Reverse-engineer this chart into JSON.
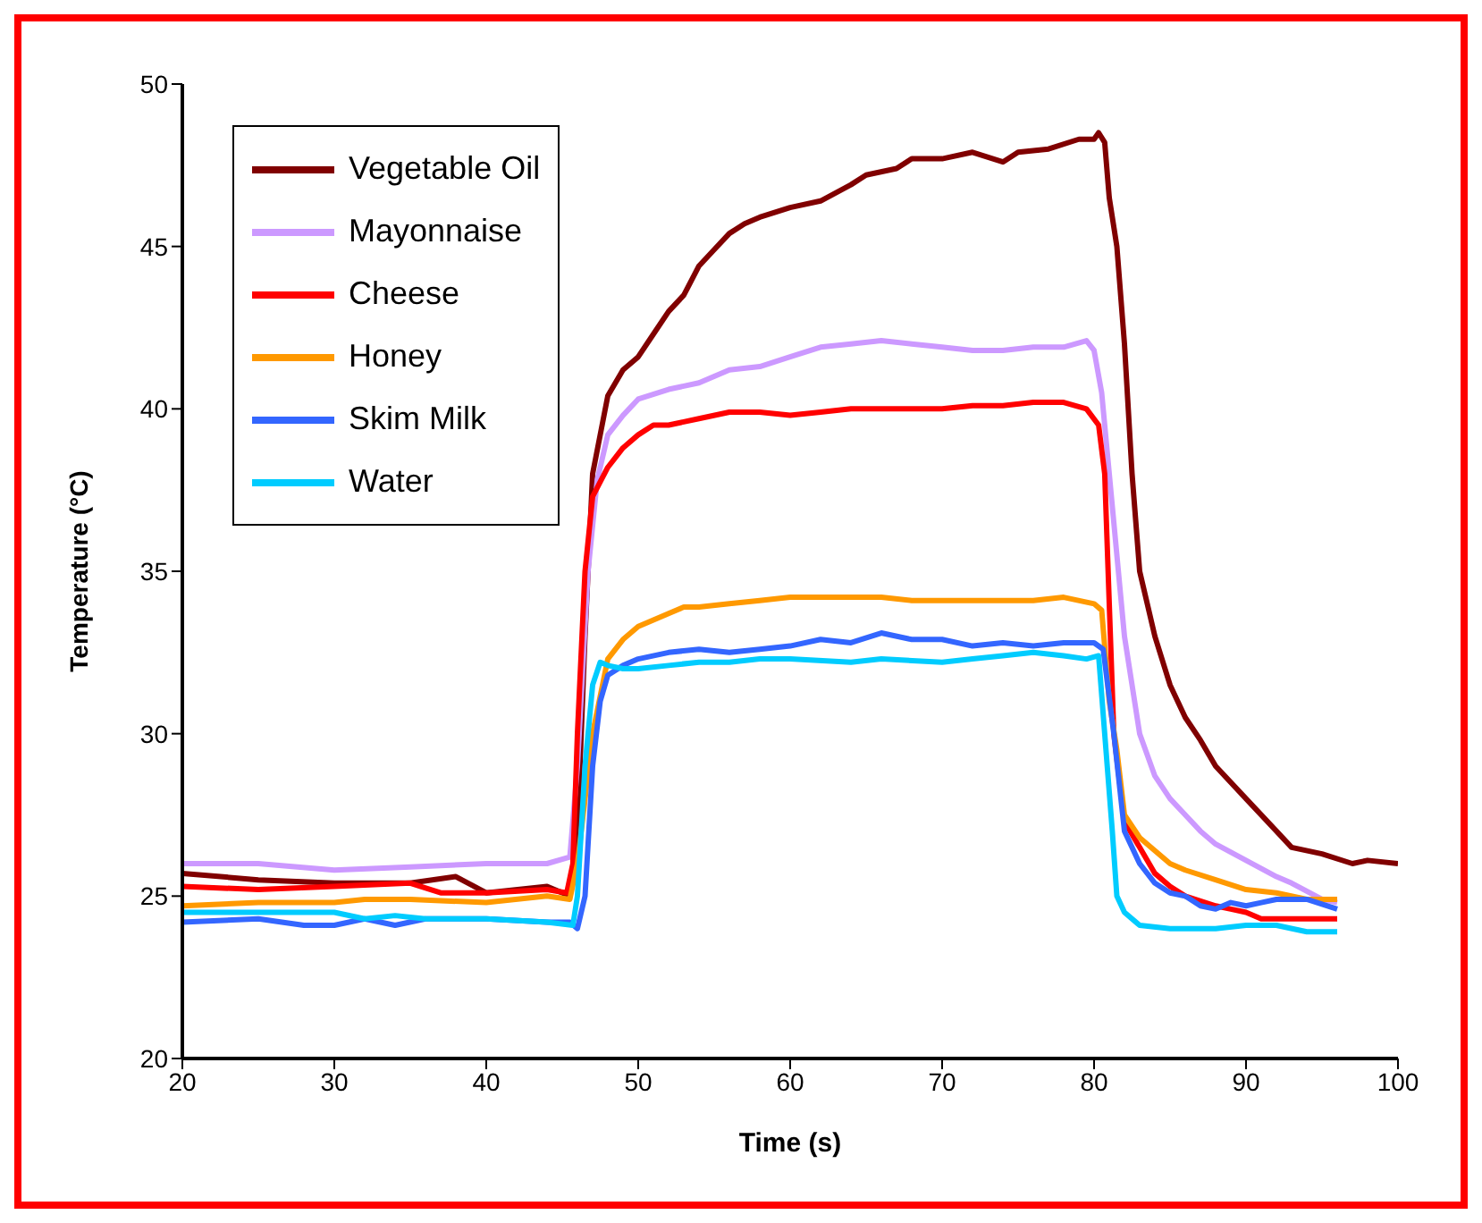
{
  "chart_data": {
    "type": "line",
    "xlabel": "Time (s)",
    "ylabel": "Temperature (°C)",
    "xlim": [
      20,
      100
    ],
    "xticks": [
      20,
      30,
      40,
      50,
      60,
      70,
      80,
      90,
      100
    ],
    "ylim": [
      20,
      50
    ],
    "yticks": [
      20,
      25,
      30,
      35,
      40,
      45,
      50
    ],
    "grid": false,
    "legend": "top left",
    "marker": "none",
    "line_style": "solid",
    "series": [
      {
        "name": "Vegetable Oil",
        "color": "#800000",
        "x": [
          20,
          25,
          30,
          35,
          38,
          40,
          44,
          45.5,
          46,
          46.5,
          47,
          48,
          49,
          50,
          51,
          52,
          53,
          54,
          55,
          56,
          57,
          58,
          60,
          62,
          64,
          65,
          67,
          68,
          70,
          72,
          74,
          75,
          77,
          79,
          80,
          80.3,
          80.7,
          81,
          81.5,
          82,
          82.5,
          83,
          84,
          85,
          86,
          87,
          88,
          90,
          92,
          93,
          95,
          97,
          98,
          100
        ],
        "values": [
          25.7,
          25.5,
          25.4,
          25.4,
          25.6,
          25.1,
          25.3,
          25.0,
          27,
          33,
          38,
          40.4,
          41.2,
          41.6,
          42.3,
          43.0,
          43.5,
          44.4,
          44.9,
          45.4,
          45.7,
          45.9,
          46.2,
          46.4,
          46.9,
          47.2,
          47.4,
          47.7,
          47.7,
          47.9,
          47.6,
          47.9,
          48.0,
          48.3,
          48.3,
          48.5,
          48.2,
          46.5,
          45,
          42,
          38,
          35,
          33,
          31.5,
          30.5,
          29.8,
          29.0,
          28.0,
          27.0,
          26.5,
          26.3,
          26.0,
          26.1,
          26.0
        ]
      },
      {
        "name": "Mayonnaise",
        "color": "#cc99ff",
        "x": [
          20,
          25,
          30,
          35,
          40,
          44,
          45.5,
          46,
          46.7,
          47.3,
          48,
          49,
          50,
          52,
          53,
          54,
          55,
          56,
          58,
          60,
          62,
          64,
          66,
          68,
          70,
          72,
          74,
          76,
          78,
          79.5,
          80,
          80.5,
          81,
          82,
          83,
          84,
          85,
          86,
          87,
          88,
          90,
          92,
          93,
          95,
          96
        ],
        "values": [
          26.0,
          26.0,
          25.8,
          25.9,
          26.0,
          26.0,
          26.2,
          29,
          35,
          37.8,
          39.2,
          39.8,
          40.3,
          40.6,
          40.7,
          40.8,
          41.0,
          41.2,
          41.3,
          41.6,
          41.9,
          42.0,
          42.1,
          42.0,
          41.9,
          41.8,
          41.8,
          41.9,
          41.9,
          42.1,
          41.8,
          40.5,
          38,
          33,
          30,
          28.7,
          28.0,
          27.5,
          27.0,
          26.6,
          26.1,
          25.6,
          25.4,
          24.9,
          24.8
        ]
      },
      {
        "name": "Cheese",
        "color": "#ff0000",
        "x": [
          20,
          25,
          30,
          35,
          37,
          40,
          44,
          45.3,
          45.7,
          46,
          46.5,
          47,
          48,
          49,
          50,
          51,
          52,
          54,
          56,
          58,
          60,
          62,
          64,
          66,
          70,
          72,
          74,
          76,
          78,
          79.5,
          80.3,
          80.7,
          81,
          81.3,
          82,
          83,
          84,
          85,
          86,
          88,
          89,
          90,
          91,
          93,
          96
        ],
        "values": [
          25.3,
          25.2,
          25.3,
          25.4,
          25.1,
          25.1,
          25.2,
          25.1,
          26,
          30,
          35,
          37.3,
          38.2,
          38.8,
          39.2,
          39.5,
          39.5,
          39.7,
          39.9,
          39.9,
          39.8,
          39.9,
          40.0,
          40.0,
          40.0,
          40.1,
          40.1,
          40.2,
          40.2,
          40.0,
          39.5,
          38,
          34,
          30,
          27.3,
          26.5,
          25.7,
          25.3,
          25.0,
          24.7,
          24.6,
          24.5,
          24.3,
          24.3,
          24.3
        ]
      },
      {
        "name": "Honey",
        "color": "#ff9900",
        "x": [
          20,
          25,
          30,
          32,
          35,
          40,
          44,
          45.5,
          46,
          47,
          48,
          49,
          50,
          51,
          52,
          53,
          54,
          56,
          58,
          60,
          64,
          66,
          68,
          70,
          74,
          76,
          78,
          80,
          80.5,
          81,
          81.5,
          82,
          83,
          84,
          85,
          86,
          88,
          90,
          92,
          94,
          96
        ],
        "values": [
          24.7,
          24.8,
          24.8,
          24.9,
          24.9,
          24.8,
          25.0,
          24.9,
          26,
          30,
          32.3,
          32.9,
          33.3,
          33.5,
          33.7,
          33.9,
          33.9,
          34.0,
          34.1,
          34.2,
          34.2,
          34.2,
          34.1,
          34.1,
          34.1,
          34.1,
          34.2,
          34.0,
          33.8,
          31,
          29.5,
          27.5,
          26.8,
          26.4,
          26.0,
          25.8,
          25.5,
          25.2,
          25.1,
          24.9,
          24.9
        ]
      },
      {
        "name": "Skim Milk",
        "color": "#3366ff",
        "x": [
          20,
          25,
          28,
          30,
          32,
          34,
          36,
          40,
          44,
          45.5,
          46,
          46.5,
          47,
          47.5,
          48,
          49,
          50,
          52,
          54,
          56,
          58,
          60,
          62,
          64,
          66,
          68,
          70,
          72,
          74,
          76,
          78,
          80,
          80.6,
          81.3,
          82,
          83,
          84,
          85,
          86,
          87,
          88,
          89,
          90,
          91,
          92,
          94,
          96
        ],
        "values": [
          24.2,
          24.3,
          24.1,
          24.1,
          24.3,
          24.1,
          24.3,
          24.3,
          24.2,
          24.2,
          24.0,
          25,
          29,
          31,
          31.8,
          32.1,
          32.3,
          32.5,
          32.6,
          32.5,
          32.6,
          32.7,
          32.9,
          32.8,
          33.1,
          32.9,
          32.9,
          32.7,
          32.8,
          32.7,
          32.8,
          32.8,
          32.6,
          30,
          27,
          26,
          25.4,
          25.1,
          25.0,
          24.7,
          24.6,
          24.8,
          24.7,
          24.8,
          24.9,
          24.9,
          24.6
        ]
      },
      {
        "name": "Water",
        "color": "#00ccff",
        "x": [
          20,
          25,
          28,
          30,
          32,
          34,
          36,
          40,
          44,
          45.7,
          46,
          46.5,
          47,
          47.5,
          48,
          49,
          50,
          52,
          54,
          56,
          58,
          60,
          64,
          66,
          70,
          72,
          74,
          76,
          78,
          79.5,
          80.3,
          80.7,
          81.2,
          81.5,
          82,
          83,
          85,
          87,
          88,
          90,
          92,
          94,
          96
        ],
        "values": [
          24.5,
          24.5,
          24.5,
          24.5,
          24.3,
          24.4,
          24.3,
          24.3,
          24.2,
          24.1,
          25,
          29,
          31.5,
          32.2,
          32.1,
          32.0,
          32.0,
          32.1,
          32.2,
          32.2,
          32.3,
          32.3,
          32.2,
          32.3,
          32.2,
          32.3,
          32.4,
          32.5,
          32.4,
          32.3,
          32.4,
          30,
          27,
          25,
          24.5,
          24.1,
          24.0,
          24.0,
          24.0,
          24.1,
          24.1,
          23.9,
          23.9
        ]
      }
    ]
  }
}
